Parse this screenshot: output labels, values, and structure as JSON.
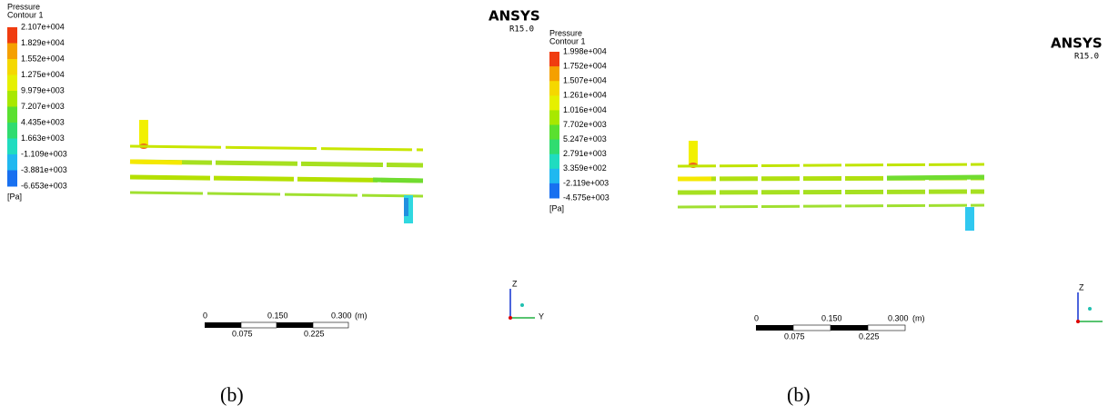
{
  "panels": [
    {
      "legend": {
        "title": "Pressure",
        "subtitle": "Contour 1",
        "labels": [
          "2.107e+004",
          "1.829e+004",
          "1.552e+004",
          "1.275e+004",
          "9.979e+003",
          "7.207e+003",
          "4.435e+003",
          "1.663e+003",
          "-1.109e+003",
          "-3.881e+003",
          "-6.653e+003"
        ],
        "unit": "[Pa]"
      },
      "logo": "ANSYS",
      "version": "R15.0",
      "scale_bar": {
        "top": [
          "0",
          "0.150",
          "0.300",
          "(m)"
        ],
        "bottom": [
          "0.075",
          "0.225"
        ]
      },
      "axes": [
        "Z",
        "Y"
      ],
      "caption": "(b)"
    },
    {
      "legend": {
        "title": "Pressure",
        "subtitle": "Contour 1",
        "labels": [
          "1.998e+004",
          "1.752e+004",
          "1.507e+004",
          "1.261e+004",
          "1.016e+004",
          "7.702e+003",
          "5.247e+003",
          "2.791e+003",
          "3.359e+002",
          "-2.119e+003",
          "-4.575e+003"
        ],
        "unit": "[Pa]"
      },
      "logo": "ANSYS",
      "version": "R15.0",
      "scale_bar": {
        "top": [
          "0",
          "0.150",
          "0.300",
          "(m)"
        ],
        "bottom": [
          "0.075",
          "0.225"
        ]
      },
      "axes": [
        "Z"
      ],
      "caption": "(b)"
    }
  ]
}
